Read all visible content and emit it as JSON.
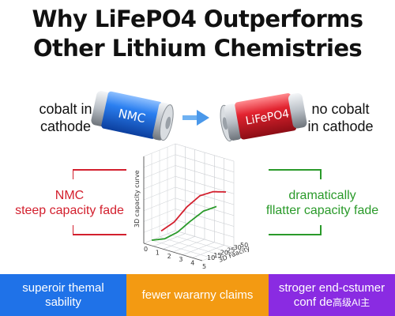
{
  "title": {
    "line1": "Why LiFePO4 Outperforms",
    "line2": "Other Lithium Chemistries"
  },
  "left_battery": {
    "label": "NMC",
    "note_line1": "cobalt in",
    "note_line2": "cathode",
    "body_color": "#1f6fe0"
  },
  "right_battery": {
    "label": "LiFePO4",
    "note_line1": "no cobalt",
    "note_line2": "in cathode",
    "body_color": "#d71e2b"
  },
  "arrow_icon": "right-arrow-icon",
  "left_callout": {
    "line1": "NMC",
    "line2": "steep capacity fade",
    "color": "#d3202e"
  },
  "right_callout": {
    "line1": "dramatically",
    "line2": "fllatter capacity fade",
    "color": "#2a9a2a"
  },
  "chart": {
    "y_axis_label": "3D capacity curve",
    "x_axis_label": "3D Faacity",
    "front_ticks": [
      "0",
      "1",
      "2",
      "3",
      "4",
      "5"
    ],
    "right_ticks": [
      "10",
      "15",
      "20",
      "25",
      "30",
      "50"
    ]
  },
  "chart_data": {
    "type": "line",
    "title": "",
    "ylabel": "3D capacity curve",
    "xlabel": "3D Faacity",
    "series": [
      {
        "color": "#d3202e",
        "x": [
          0,
          1,
          2,
          3,
          4,
          5
        ],
        "y": [
          0.1,
          0.3,
          0.62,
          0.86,
          0.97,
          1.0
        ]
      },
      {
        "color": "#2a9a2a",
        "x": [
          0,
          1,
          2,
          3,
          4,
          5
        ],
        "y": [
          0.0,
          0.06,
          0.22,
          0.46,
          0.68,
          0.8
        ]
      }
    ],
    "grid": true
  },
  "banners": {
    "thermal": {
      "text": "superoir themal sability",
      "color": "#1f72e8"
    },
    "warranty": {
      "text": "fewer wararny claims",
      "color": "#f39a12"
    },
    "confidence": {
      "text": "stroger end-cstumer conf de",
      "suffix": "高级AI主",
      "color": "#8a2be2"
    }
  }
}
